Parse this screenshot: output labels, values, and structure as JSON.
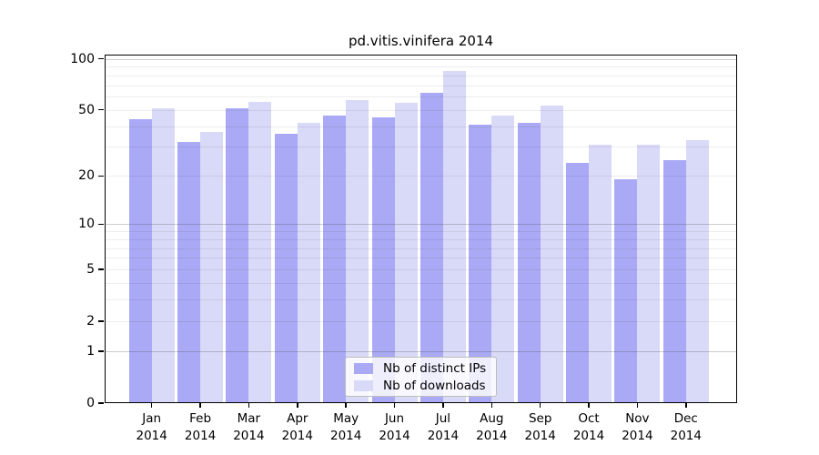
{
  "title": "pd.vitis.vinifera 2014",
  "colors": {
    "distinct_ips": "#a9a9f5",
    "downloads": "#d9d9f8",
    "axis": "#000000",
    "legend_border": "#bdbdbd"
  },
  "legend": {
    "items": [
      {
        "label": "Nb of distinct IPs",
        "color_key": "distinct_ips"
      },
      {
        "label": "Nb of downloads",
        "color_key": "downloads"
      }
    ]
  },
  "x_axis": {
    "months": [
      "Jan",
      "Feb",
      "Mar",
      "Apr",
      "May",
      "Jun",
      "Jul",
      "Aug",
      "Sep",
      "Oct",
      "Nov",
      "Dec"
    ],
    "year": "2014"
  },
  "y_axis": {
    "tick_values": [
      0,
      1,
      2,
      5,
      10,
      20,
      50,
      100
    ]
  },
  "chart_data": {
    "type": "bar",
    "title": "pd.vitis.vinifera 2014",
    "categories": [
      "Jan 2014",
      "Feb 2014",
      "Mar 2014",
      "Apr 2014",
      "May 2014",
      "Jun 2014",
      "Jul 2014",
      "Aug 2014",
      "Sep 2014",
      "Oct 2014",
      "Nov 2014",
      "Dec 2014"
    ],
    "series": [
      {
        "name": "Nb of distinct IPs",
        "color": "#a9a9f5",
        "values": [
          44,
          32,
          51,
          36,
          46,
          45,
          63,
          41,
          42,
          24,
          19,
          25
        ]
      },
      {
        "name": "Nb of downloads",
        "color": "#d9d9f8",
        "values": [
          51,
          37,
          56,
          42,
          57,
          55,
          85,
          46,
          53,
          31,
          31,
          33
        ]
      }
    ],
    "xlabel": "",
    "ylabel": "",
    "yscale": "symlog (position proportional to log(1+value))",
    "ylim": [
      0,
      107
    ],
    "y_ticks": [
      0,
      1,
      2,
      5,
      10,
      20,
      50,
      100
    ],
    "minor_gridline_values": [
      2,
      3,
      4,
      5,
      6,
      7,
      8,
      9,
      20,
      30,
      40,
      50,
      60,
      70,
      80,
      90
    ],
    "major_gridline_values": [
      1,
      10,
      100
    ],
    "grid": "horizontal",
    "legend_position": "lower center"
  }
}
